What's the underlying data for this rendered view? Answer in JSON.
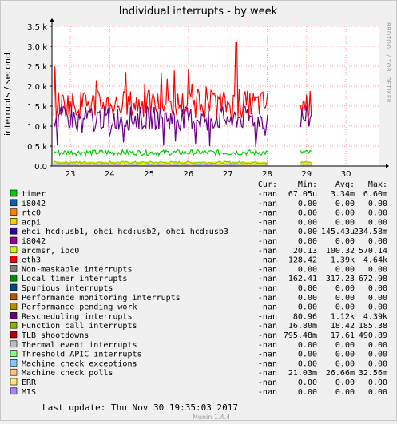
{
  "chart_data": {
    "type": "line",
    "title": "Individual interrupts - by week",
    "ylabel": "interrupts / second",
    "watermark": "RRDTOOL / TOBI OETIKER",
    "ylim": [
      0,
      3500
    ],
    "y_ticks": [
      {
        "v": 0,
        "label": "0.0"
      },
      {
        "v": 500,
        "label": "0.5 k"
      },
      {
        "v": 1000,
        "label": "1.0 k"
      },
      {
        "v": 1500,
        "label": "1.5 k"
      },
      {
        "v": 2000,
        "label": "2.0 k"
      },
      {
        "v": 2500,
        "label": "2.5 k"
      },
      {
        "v": 3000,
        "label": "3.0 k"
      },
      {
        "v": 3500,
        "label": "3.5 k"
      }
    ],
    "x_ticks": [
      "23",
      "24",
      "25",
      "26",
      "27",
      "28",
      "29",
      "30"
    ],
    "grid": true,
    "series": [
      {
        "name": "Machine check polls",
        "color": "#c0a0f8",
        "base": 40,
        "amp": 15,
        "gaps": [
          [
            5.02,
            5.85
          ],
          [
            6.15,
            7.6
          ]
        ]
      },
      {
        "name": "Function call interrupts",
        "color": "#88cc00",
        "base": 90,
        "amp": 30,
        "gaps": [
          [
            5.02,
            5.85
          ],
          [
            6.15,
            7.6
          ]
        ]
      },
      {
        "name": "Local timer interrupts",
        "color": "#00cc00",
        "base": 340,
        "amp": 70,
        "gaps": [
          [
            5.02,
            5.85
          ],
          [
            6.15,
            7.6
          ]
        ]
      },
      {
        "name": "eth3",
        "color": "#ff0000",
        "base": 1550,
        "amp": 350,
        "gaps": [
          [
            5.02,
            5.85
          ],
          [
            6.15,
            7.6
          ]
        ]
      },
      {
        "name": "ehci_hcd:usb1, ohci_hcd:usb2, ohci_hcd:usb3",
        "color": "#6a0088",
        "base": 1200,
        "amp": 300,
        "gaps": [
          [
            5.02,
            5.85
          ],
          [
            6.15,
            7.6
          ]
        ]
      }
    ]
  },
  "legend": {
    "headers": {
      "cur": "Cur:",
      "min": "Min:",
      "avg": "Avg:",
      "max": "Max:"
    },
    "rows": [
      {
        "name": "timer",
        "color": "#00cc00",
        "cur": "-nan",
        "min": "67.05u",
        "avg": "3.34m",
        "max": "6.60m"
      },
      {
        "name": "i8042",
        "color": "#0066b3",
        "cur": "-nan",
        "min": "0.00",
        "avg": "0.00",
        "max": "0.00"
      },
      {
        "name": "rtc0",
        "color": "#ff8000",
        "cur": "-nan",
        "min": "0.00",
        "avg": "0.00",
        "max": "0.00"
      },
      {
        "name": "acpi",
        "color": "#ffcc00",
        "cur": "-nan",
        "min": "0.00",
        "avg": "0.00",
        "max": "0.00"
      },
      {
        "name": "ehci_hcd:usb1, ohci_hcd:usb2, ohci_hcd:usb3",
        "color": "#330099",
        "cur": "-nan",
        "min": "0.00",
        "avg": "145.43u",
        "max": "234.58m"
      },
      {
        "name": "i8042",
        "color": "#990099",
        "cur": "-nan",
        "min": "0.00",
        "avg": "0.00",
        "max": "0.00"
      },
      {
        "name": "arcmsr, ioc0",
        "color": "#ccff00",
        "cur": "-nan",
        "min": "20.13",
        "avg": "100.32",
        "max": "570.14"
      },
      {
        "name": "eth3",
        "color": "#ff0000",
        "cur": "-nan",
        "min": "128.42",
        "avg": "1.39k",
        "max": "4.64k"
      },
      {
        "name": "Non-maskable interrupts",
        "color": "#808080",
        "cur": "-nan",
        "min": "0.00",
        "avg": "0.00",
        "max": "0.00"
      },
      {
        "name": "Local timer interrupts",
        "color": "#008f00",
        "cur": "-nan",
        "min": "162.41",
        "avg": "317.23",
        "max": "672.98"
      },
      {
        "name": "Spurious interrupts",
        "color": "#00487d",
        "cur": "-nan",
        "min": "0.00",
        "avg": "0.00",
        "max": "0.00"
      },
      {
        "name": "Performance monitoring interrupts",
        "color": "#b35a00",
        "cur": "-nan",
        "min": "0.00",
        "avg": "0.00",
        "max": "0.00"
      },
      {
        "name": "Performance pending work",
        "color": "#b38f00",
        "cur": "-nan",
        "min": "0.00",
        "avg": "0.00",
        "max": "0.00"
      },
      {
        "name": "Rescheduling interrupts",
        "color": "#6b006b",
        "cur": "-nan",
        "min": "80.96",
        "avg": "1.12k",
        "max": "4.39k"
      },
      {
        "name": "Function call interrupts",
        "color": "#8fb300",
        "cur": "-nan",
        "min": "16.80m",
        "avg": "18.42",
        "max": "185.38"
      },
      {
        "name": "TLB shootdowns",
        "color": "#b30000",
        "cur": "-nan",
        "min": "795.48m",
        "avg": "17.61",
        "max": "490.89"
      },
      {
        "name": "Thermal event interrupts",
        "color": "#bebebe",
        "cur": "-nan",
        "min": "0.00",
        "avg": "0.00",
        "max": "0.00"
      },
      {
        "name": "Threshold APIC interrupts",
        "color": "#80ff80",
        "cur": "-nan",
        "min": "0.00",
        "avg": "0.00",
        "max": "0.00"
      },
      {
        "name": "Machine check exceptions",
        "color": "#80c9ff",
        "cur": "-nan",
        "min": "0.00",
        "avg": "0.00",
        "max": "0.00"
      },
      {
        "name": "Machine check polls",
        "color": "#ffc080",
        "cur": "-nan",
        "min": "21.03m",
        "avg": "26.66m",
        "max": "32.56m"
      },
      {
        "name": "ERR",
        "color": "#ffe680",
        "cur": "-nan",
        "min": "0.00",
        "avg": "0.00",
        "max": "0.00"
      },
      {
        "name": "MIS",
        "color": "#aa80ff",
        "cur": "-nan",
        "min": "0.00",
        "avg": "0.00",
        "max": "0.00"
      }
    ]
  },
  "footer": {
    "last_update": "Last update:  Thu Nov 30 19:35:03 2017",
    "munin": "Munin 1.4.4"
  }
}
